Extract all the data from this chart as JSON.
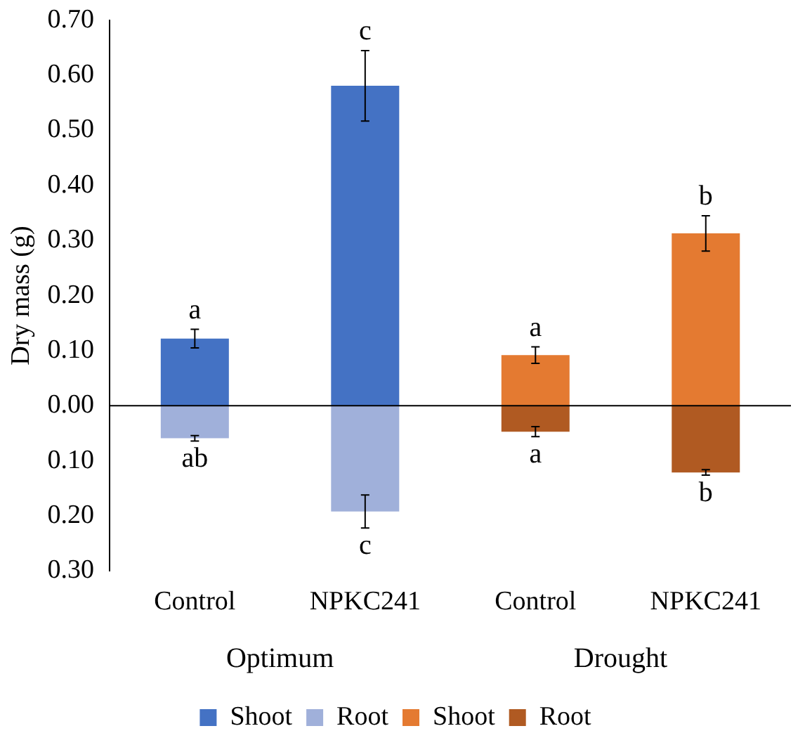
{
  "chart_data": {
    "type": "bar",
    "stacked": true,
    "ylabel": "Dry mass (g)",
    "categories": [
      "Control",
      "NPKC241",
      "Control",
      "NPKC241"
    ],
    "series": [
      {
        "name": "Shoot",
        "color": "#4472c4",
        "values": [
          0.122,
          0.581,
          null,
          null
        ],
        "errors": [
          0.017,
          0.064,
          null,
          null
        ],
        "value_labels": [
          "a",
          "c",
          null,
          null
        ]
      },
      {
        "name": "Root",
        "color": "#a0b0da",
        "values": [
          -0.059,
          -0.192,
          null,
          null
        ],
        "errors": [
          0.005,
          0.03,
          null,
          null
        ],
        "value_labels": [
          "ab",
          "c",
          null,
          null
        ]
      },
      {
        "name": "Shoot",
        "color": "#e47a31",
        "values": [
          null,
          null,
          0.092,
          0.313
        ],
        "errors": [
          null,
          null,
          0.015,
          0.032
        ],
        "value_labels": [
          null,
          null,
          "a",
          "b"
        ]
      },
      {
        "name": "Root",
        "color": "#b05a22",
        "values": [
          null,
          null,
          -0.047,
          -0.121
        ],
        "errors": [
          null,
          null,
          0.009,
          0.005
        ],
        "value_labels": [
          null,
          null,
          "a",
          "b"
        ]
      }
    ],
    "ylim": [
      -0.3,
      0.7
    ],
    "yticks": [
      {
        "value": -0.3,
        "label": "0.30"
      },
      {
        "value": -0.2,
        "label": "0.20"
      },
      {
        "value": -0.1,
        "label": "0.10"
      },
      {
        "value": 0,
        "label": "0.00"
      },
      {
        "value": 0.1,
        "label": "0.10"
      },
      {
        "value": 0.2,
        "label": "0.20"
      },
      {
        "value": 0.3,
        "label": "0.30"
      },
      {
        "value": 0.4,
        "label": "0.40"
      },
      {
        "value": 0.5,
        "label": "0.50"
      },
      {
        "value": 0.6,
        "label": "0.60"
      },
      {
        "value": 0.7,
        "label": "0.70"
      }
    ],
    "annotations": [
      "Optimum",
      "Drought"
    ],
    "legend": "bottom"
  }
}
